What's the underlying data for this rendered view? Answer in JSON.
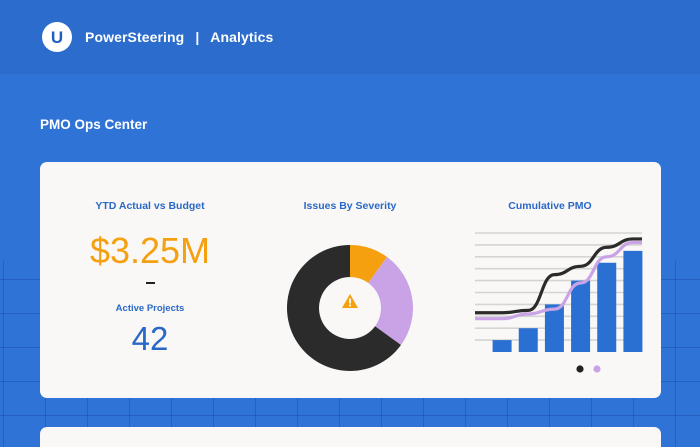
{
  "header": {
    "logo_letter": "U",
    "brand": "PowerSteering",
    "separator": "|",
    "section": "Analytics"
  },
  "page": {
    "title": "PMO Ops Center"
  },
  "kpi": {
    "title": "YTD Actual vs Budget",
    "value": "$3.25M",
    "separator": "-",
    "active_projects_label": "Active Projects",
    "active_projects_value": "42"
  },
  "issues": {
    "title": "Issues By Severity",
    "center_icon": "warning-triangle-icon",
    "chart_data": {
      "type": "pie",
      "variant": "donut",
      "slices": [
        {
          "value": 0.1,
          "color": "#f5a00f"
        },
        {
          "value": 0.25,
          "color": "#c9a3e6"
        },
        {
          "value": 0.65,
          "color": "#2b2b2b"
        }
      ]
    }
  },
  "cumulative": {
    "title": "Cumulative PMO",
    "chart_data": {
      "type": "bar",
      "values": [
        1,
        2,
        4,
        6,
        7.5,
        8.5
      ],
      "ylim": [
        0,
        10
      ],
      "grid": true,
      "lines": [
        {
          "color": "#2b2b2b",
          "values": [
            3.3,
            3.5,
            6.5,
            7.2,
            8.8,
            9.5
          ]
        },
        {
          "color": "#c9a3e6",
          "values": [
            2.8,
            3.2,
            3.6,
            5.8,
            8.0,
            9.2
          ]
        }
      ]
    },
    "pager": [
      {
        "color": "#222222",
        "active": true
      },
      {
        "color": "#c9a3e6",
        "active": false
      }
    ]
  },
  "colors": {
    "background": "#2f73d6",
    "header": "#2b6ccd",
    "accent_orange": "#f5a00f",
    "accent_blue": "#2a68c7",
    "accent_lilac": "#c9a3e6",
    "dark": "#2b2b2b",
    "card": "#f9f8f6"
  }
}
